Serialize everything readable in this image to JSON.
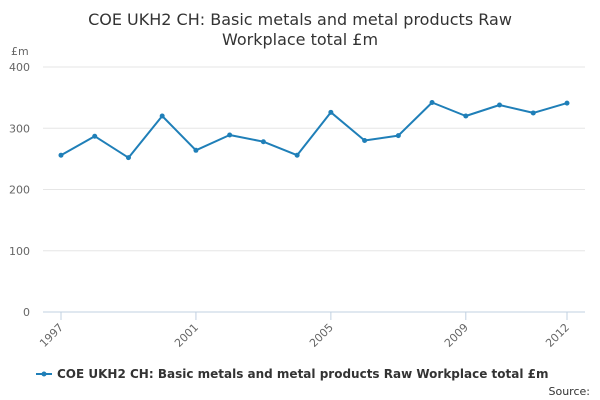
{
  "chart_data": {
    "type": "line",
    "title_lines": [
      "COE UKH2 CH: Basic metals and metal products Raw",
      "Workplace total £m"
    ],
    "ylabel": "£m",
    "xlabel": "",
    "x": [
      1997,
      1998,
      1999,
      2000,
      2001,
      2002,
      2003,
      2004,
      2005,
      2006,
      2007,
      2008,
      2009,
      2010,
      2011,
      2012
    ],
    "x_tick_labels": [
      "1997",
      "2001",
      "2005",
      "2009",
      "2012"
    ],
    "x_tick_values": [
      1997,
      2001,
      2005,
      2009,
      2012
    ],
    "y_ticks": [
      0,
      100,
      200,
      300,
      400
    ],
    "ylim": [
      0,
      400
    ],
    "grid": "horizontal",
    "legend_position": "bottom",
    "series": [
      {
        "name": "COE UKH2 CH: Basic metals and metal products Raw Workplace total £m",
        "color": "#1f7fb8",
        "values": [
          256,
          287,
          252,
          320,
          264,
          289,
          278,
          256,
          326,
          280,
          288,
          342,
          320,
          338,
          325,
          341
        ]
      }
    ],
    "source_label": "Source:"
  }
}
